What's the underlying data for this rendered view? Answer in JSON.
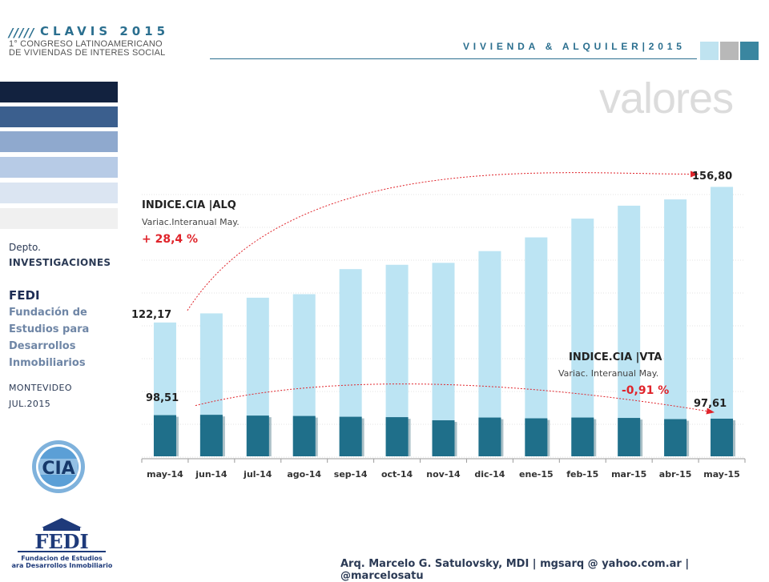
{
  "header": {
    "slashes": "/////",
    "brand": "CLAVIS 2015",
    "congress_line1": "1° CONGRESO LATINOAMERICANO",
    "congress_line2": "DE VIVIENDAS DE INTERES SOCIAL",
    "topic": "VIVIENDA & ALQUILER|2015",
    "section_title": "valores"
  },
  "colors": {
    "accent": "#2b6f8f",
    "squares": [
      "#bfe3f0",
      "#b8b8b8",
      "#3a86a0"
    ],
    "left_bars": [
      "#12223f",
      "#3b5f8e",
      "#8fa9ce",
      "#b7cbe6",
      "#dbe5f2",
      "#f0f0f0"
    ],
    "bar_light": "#bce4f3",
    "bar_dark": "#1f6f8a",
    "arrow_red": "#e0242b",
    "annotation_red": "#e0242b"
  },
  "left_panel": {
    "dept_label": "Depto.",
    "dept_name": "INVESTIGACIONES",
    "org_acronym": "FEDI",
    "org_name_lines": [
      "Fundación de",
      "Estudios para",
      "Desarrollos",
      "Inmobiliarios"
    ],
    "city": "MONTEVIDEO",
    "date": "JUL.2015"
  },
  "logos": {
    "cia_text": "CIA",
    "fedi_text": "FEDI",
    "fedi_sub1": "Fundacion de Estudios",
    "fedi_sub2": "para Desarrollos Inmobiliarios"
  },
  "footer": {
    "credits": "Arq. Marcelo G. Satulovsky, MDI | mgsarq @ yahoo.com.ar | @marcelosatu"
  },
  "chart_data": {
    "type": "bar",
    "categories": [
      "may-14",
      "jun-14",
      "jul-14",
      "ago-14",
      "sep-14",
      "oct-14",
      "nov-14",
      "dic-14",
      "ene-15",
      "feb-15",
      "mar-15",
      "abr-15",
      "may-15"
    ],
    "series": [
      {
        "name": "INDICE.CIA |ALQ",
        "values": [
          122.17,
          124.5,
          128.5,
          129.4,
          135.8,
          136.9,
          137.4,
          140.4,
          143.9,
          148.7,
          152.0,
          153.6,
          156.8
        ]
      },
      {
        "name": "INDICE.CIA |VTA",
        "values": [
          98.51,
          98.6,
          98.4,
          98.3,
          98.1,
          98.0,
          97.2,
          97.9,
          97.7,
          97.9,
          97.8,
          97.5,
          97.61
        ]
      }
    ],
    "ylim": [
      88,
      162
    ],
    "grid": true,
    "annotations": {
      "alq": {
        "title": "INDICE.CIA |ALQ",
        "subtitle": "Variac.Interanual May.",
        "value": "+ 28,4 %",
        "start_label": "122,17",
        "end_label": "156,80"
      },
      "vta": {
        "title": "INDICE.CIA |VTA",
        "subtitle": "Variac. Interanual May.",
        "value": "-0,91 %",
        "start_label": "98,51",
        "end_label": "97,61"
      }
    }
  }
}
